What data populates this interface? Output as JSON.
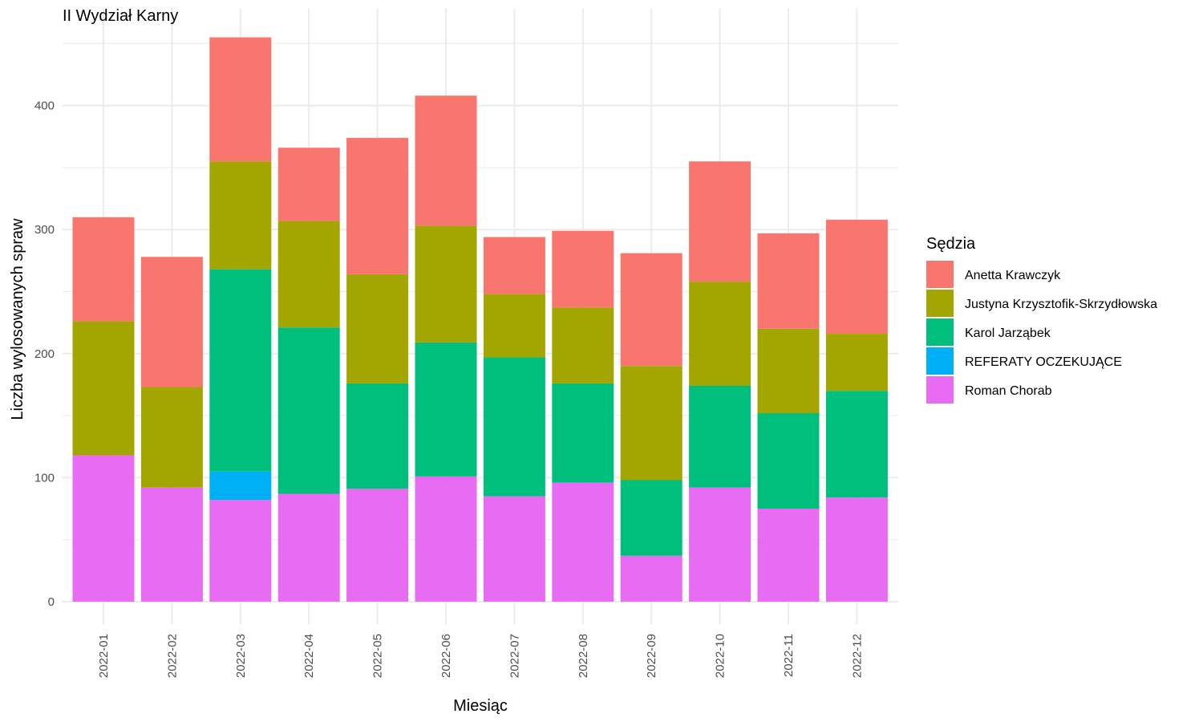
{
  "chart_data": {
    "type": "bar",
    "stacked": true,
    "title": "II Wydział Karny",
    "xlabel": "Miesiąc",
    "ylabel": "Liczba wylosowanych spraw",
    "ylim": [
      0,
      460
    ],
    "yticks": [
      "0",
      "100",
      "200",
      "300",
      "400"
    ],
    "categories": [
      "2022-01",
      "2022-02",
      "2022-03",
      "2022-04",
      "2022-05",
      "2022-06",
      "2022-07",
      "2022-08",
      "2022-09",
      "2022-10",
      "2022-11",
      "2022-12"
    ],
    "legend_title": "Sędzia",
    "legend_position": "right",
    "grid": true,
    "series": [
      {
        "name": "Roman Chorab",
        "color": "#E76BF3",
        "values": [
          118,
          92,
          82,
          87,
          91,
          101,
          85,
          96,
          37,
          92,
          75,
          84
        ]
      },
      {
        "name": "REFERATY OCZEKUJĄCE",
        "color": "#00B0F6",
        "values": [
          0,
          0,
          23,
          0,
          0,
          0,
          0,
          0,
          0,
          0,
          0,
          0
        ]
      },
      {
        "name": "Karol Jarząbek",
        "color": "#00BF7D",
        "values": [
          0,
          0,
          163,
          134,
          85,
          108,
          112,
          80,
          61,
          82,
          77,
          86
        ]
      },
      {
        "name": "Justyna Krzysztofik-Skrzydłowska",
        "color": "#A3A500",
        "values": [
          108,
          81,
          87,
          86,
          88,
          94,
          51,
          61,
          92,
          84,
          68,
          46
        ]
      },
      {
        "name": "Anetta Krawczyk",
        "color": "#F8766D",
        "values": [
          84,
          105,
          100,
          59,
          110,
          105,
          46,
          62,
          91,
          97,
          77,
          92
        ]
      }
    ],
    "legend_order": [
      "Anetta Krawczyk",
      "Justyna Krzysztofik-Skrzydłowska",
      "Karol Jarząbek",
      "REFERATY OCZEKUJĄCE",
      "Roman Chorab"
    ]
  }
}
